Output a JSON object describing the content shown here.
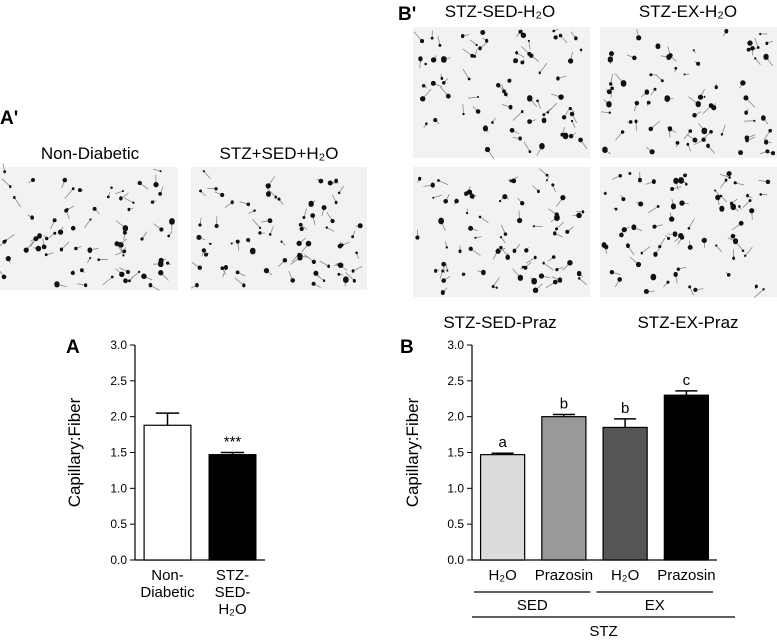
{
  "panels": {
    "a_prime": {
      "label": "A'",
      "captions": [
        "Non-Diabetic",
        "STZ+SED+H₂O"
      ]
    },
    "b_prime": {
      "label": "B'",
      "captions": [
        "STZ-SED-H₂O",
        "STZ-EX-H₂O",
        "STZ-SED-Praz",
        "STZ-EX-Praz"
      ]
    }
  },
  "chart_data": [
    {
      "type": "bar",
      "panel_label": "A",
      "ylabel": "Capillary:Fiber",
      "categories": [
        "Non-\nDiabetic",
        "STZ-\nSED-\nH₂O"
      ],
      "values": [
        1.88,
        1.47
      ],
      "errors": [
        0.17,
        0.03
      ],
      "colors": [
        "#ffffff",
        "#000000"
      ],
      "annotations": [
        null,
        "***"
      ],
      "ylim": [
        0,
        3
      ],
      "yticks": [
        {
          "value": 0,
          "label": "0.0"
        },
        {
          "value": 0.5,
          "label": "0.5"
        },
        {
          "value": 1,
          "label": "1.0"
        },
        {
          "value": 1.5,
          "label": "1.5"
        },
        {
          "value": 2,
          "label": "2.0"
        },
        {
          "value": 2.5,
          "label": "2.5"
        },
        {
          "value": 3,
          "label": "3.0"
        }
      ]
    },
    {
      "type": "bar",
      "panel_label": "B",
      "ylabel": "Capillary:Fiber",
      "categories": [
        "H₂O",
        "Prazosin",
        "H₂O",
        "Prazosin"
      ],
      "groups": [
        "SED",
        "EX"
      ],
      "supergroup": "STZ",
      "values": [
        1.47,
        2.0,
        1.85,
        2.3
      ],
      "errors": [
        0.02,
        0.03,
        0.12,
        0.06
      ],
      "colors": [
        "#dcdcdc",
        "#999999",
        "#555555",
        "#000000"
      ],
      "annotations": [
        "a",
        "b",
        "b",
        "c"
      ],
      "ylim": [
        0,
        3
      ],
      "yticks": [
        {
          "value": 0,
          "label": "0.0"
        },
        {
          "value": 0.5,
          "label": "0.5"
        },
        {
          "value": 1,
          "label": "1.0"
        },
        {
          "value": 1.5,
          "label": "1.5"
        },
        {
          "value": 2,
          "label": "2.0"
        },
        {
          "value": 2.5,
          "label": "2.5"
        },
        {
          "value": 3,
          "label": "3.0"
        }
      ]
    }
  ]
}
